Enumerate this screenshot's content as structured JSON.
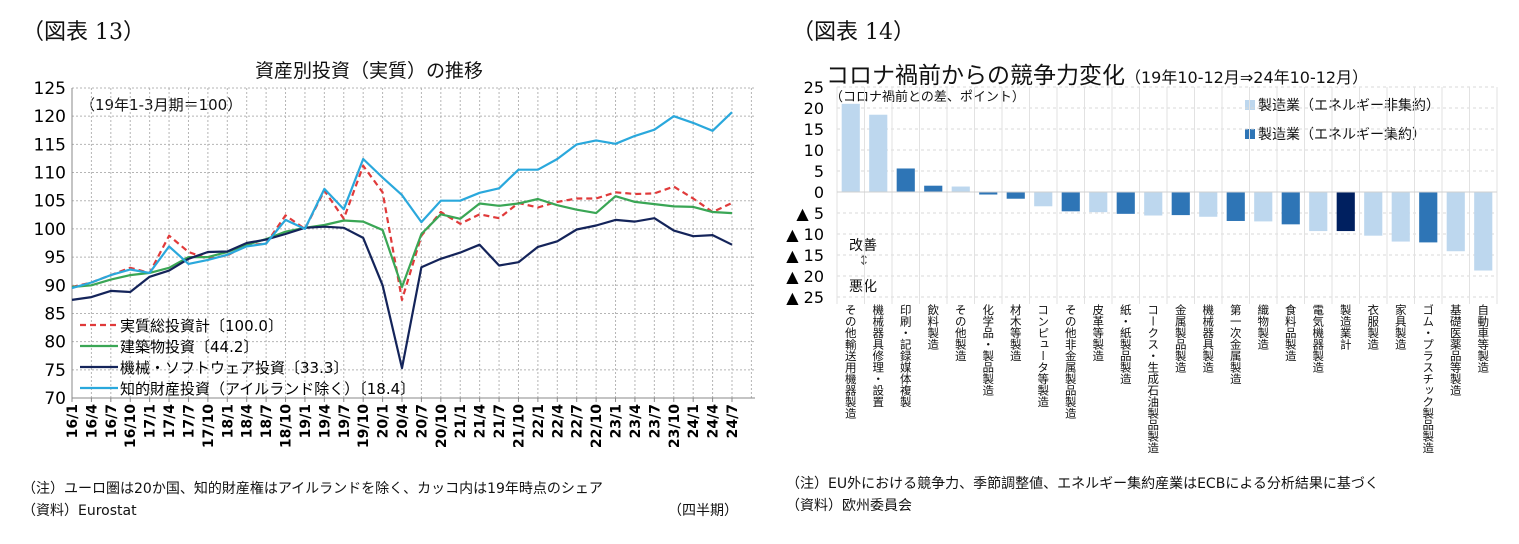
{
  "left": {
    "figure_no": "（図表 13）",
    "note": "（注）ユーロ圏は20か国、知的財産権はアイルランドを除く、カッコ内は19年時点のシェア",
    "source": "（資料）Eurostat",
    "x_unit": "（四半期）"
  },
  "right": {
    "figure_no": "（図表 14）",
    "note": "（注）EU外における競争力、季節調整値、エネルギー集約産業はECBによる分析結果に基づく",
    "source": "（資料）欧州委員会",
    "annotation_up": "改善",
    "annotation_arrow": "↕",
    "annotation_down": "悪化"
  },
  "chart_data": [
    {
      "type": "line",
      "title": "資産別投資（実質）の推移",
      "subtitle": "（19年1-3月期＝100）",
      "ylim": [
        70,
        125
      ],
      "yticks": [
        "70",
        "75",
        "80",
        "85",
        "90",
        "95",
        "100",
        "105",
        "110",
        "115",
        "120",
        "125"
      ],
      "grid": true,
      "legend_position": "bottom-left",
      "x": [
        "16/1",
        "16/4",
        "16/7",
        "16/10",
        "17/1",
        "17/4",
        "17/7",
        "17/10",
        "18/1",
        "18/4",
        "18/7",
        "18/10",
        "19/1",
        "19/4",
        "19/7",
        "19/10",
        "20/1",
        "20/4",
        "20/7",
        "20/10",
        "21/1",
        "21/4",
        "21/7",
        "21/10",
        "22/1",
        "22/4",
        "22/7",
        "22/10",
        "23/1",
        "23/4",
        "23/7",
        "23/10",
        "24/1",
        "24/4",
        "24/7"
      ],
      "series": [
        {
          "name": "実質総投資計〔100.0〕",
          "color": "#e03a3a",
          "dashed": true,
          "values": [
            89.7,
            90.5,
            91.8,
            93.1,
            92.2,
            98.8,
            95.9,
            94.7,
            95.3,
            97.1,
            97.4,
            102.4,
            100,
            106.8,
            101.8,
            111.2,
            106.5,
            87.4,
            98.8,
            103,
            100.9,
            102.6,
            101.9,
            104.6,
            103.8,
            104.8,
            105.4,
            105.4,
            106.5,
            106.2,
            106.3,
            107.5,
            105.4,
            103,
            104.6
          ]
        },
        {
          "name": "建築物投資〔44.2〕",
          "color": "#3aa655",
          "dashed": false,
          "values": [
            89.7,
            90,
            91,
            91.8,
            92.2,
            93.1,
            95,
            95,
            95.9,
            97.2,
            98.2,
            99.5,
            100.2,
            100.7,
            101.5,
            101.3,
            99.8,
            89.7,
            99.1,
            102.6,
            101.8,
            104.5,
            104.1,
            104.5,
            105.3,
            104.2,
            103.4,
            102.8,
            105.8,
            104.8,
            104.4,
            104,
            103.9,
            103,
            102.8
          ]
        },
        {
          "name": "機械・ソフトウェア投資〔33.3〕",
          "color": "#14245a",
          "dashed": false,
          "values": [
            87.4,
            87.9,
            89,
            88.8,
            91.5,
            92.6,
            94.7,
            95.9,
            96,
            97.5,
            98.1,
            99.1,
            100.2,
            100.4,
            100.2,
            98.4,
            90,
            75.3,
            93.2,
            94.7,
            95.8,
            97.2,
            93.5,
            94.1,
            96.8,
            97.8,
            99.9,
            100.6,
            101.6,
            101.3,
            101.9,
            99.7,
            98.7,
            98.9,
            97.2
          ]
        },
        {
          "name": "知的財産投資（アイルランド除く）〔18.4〕",
          "color": "#2aa8dc",
          "dashed": false,
          "values": [
            89.5,
            90.5,
            91.8,
            92.8,
            92.2,
            96.9,
            93.8,
            94.5,
            95.4,
            96.9,
            97.4,
            101.6,
            100,
            107.1,
            103.5,
            112.4,
            109.1,
            106,
            101.2,
            105,
            105,
            106.4,
            107.2,
            110.5,
            110.5,
            112.4,
            115,
            115.7,
            115.1,
            116.5,
            117.6,
            120,
            118.8,
            117.4,
            120.7
          ]
        }
      ]
    },
    {
      "type": "bar",
      "title": "コロナ禍前からの競争力変化",
      "title_suffix": "（19年10-12月⇒24年10-12月）",
      "ylabel": "（コロナ禍前との差、ポイント）",
      "ylim": [
        -25,
        25
      ],
      "yticks": [
        "25",
        "20",
        "15",
        "10",
        "5",
        "0",
        "▲ 5",
        "▲ 10",
        "▲ 15",
        "▲ 20",
        "▲ 25"
      ],
      "grid": true,
      "legend_position": "top-right",
      "legend": [
        {
          "name": "製造業（エネルギー非集約）",
          "color": "#bdd7ee"
        },
        {
          "name": "製造業（エネルギー集約）",
          "color": "#2e75b6"
        }
      ],
      "total_color": "#002060",
      "categories": [
        "その他輸送用機器製造",
        "機械器具修理・設置",
        "印刷・記録媒体複製",
        "飲料製造",
        "その他製造",
        "化学品・製品製造",
        "材木等製造",
        "コンピュータ等製造",
        "その他非金属製品製造",
        "皮革等製造",
        "紙・紙製品製造",
        "コークス・生成石油製品製造",
        "金属製品製造",
        "機械器具製造",
        "第一次金属製造",
        "織物製造",
        "食料品製造",
        "電気機器製造",
        "製造業計",
        "衣服製造",
        "家具製造",
        "ゴム・プラスチック製品製造",
        "基礎医薬品等製造",
        "自動車等製造"
      ],
      "groups": [
        "non-intensive",
        "non-intensive",
        "intensive",
        "intensive",
        "non-intensive",
        "intensive",
        "intensive",
        "non-intensive",
        "intensive",
        "non-intensive",
        "intensive",
        "non-intensive",
        "intensive",
        "non-intensive",
        "intensive",
        "non-intensive",
        "intensive",
        "non-intensive",
        "total",
        "non-intensive",
        "non-intensive",
        "intensive",
        "non-intensive",
        "non-intensive"
      ],
      "values": [
        21.0,
        18.4,
        5.6,
        1.5,
        1.3,
        -0.6,
        -1.6,
        -3.4,
        -4.6,
        -4.8,
        -5.2,
        -5.6,
        -5.5,
        -5.9,
        -6.9,
        -7.0,
        -7.7,
        -9.3,
        -9.3,
        -10.4,
        -11.8,
        -12.0,
        -14.1,
        -18.7
      ]
    }
  ]
}
